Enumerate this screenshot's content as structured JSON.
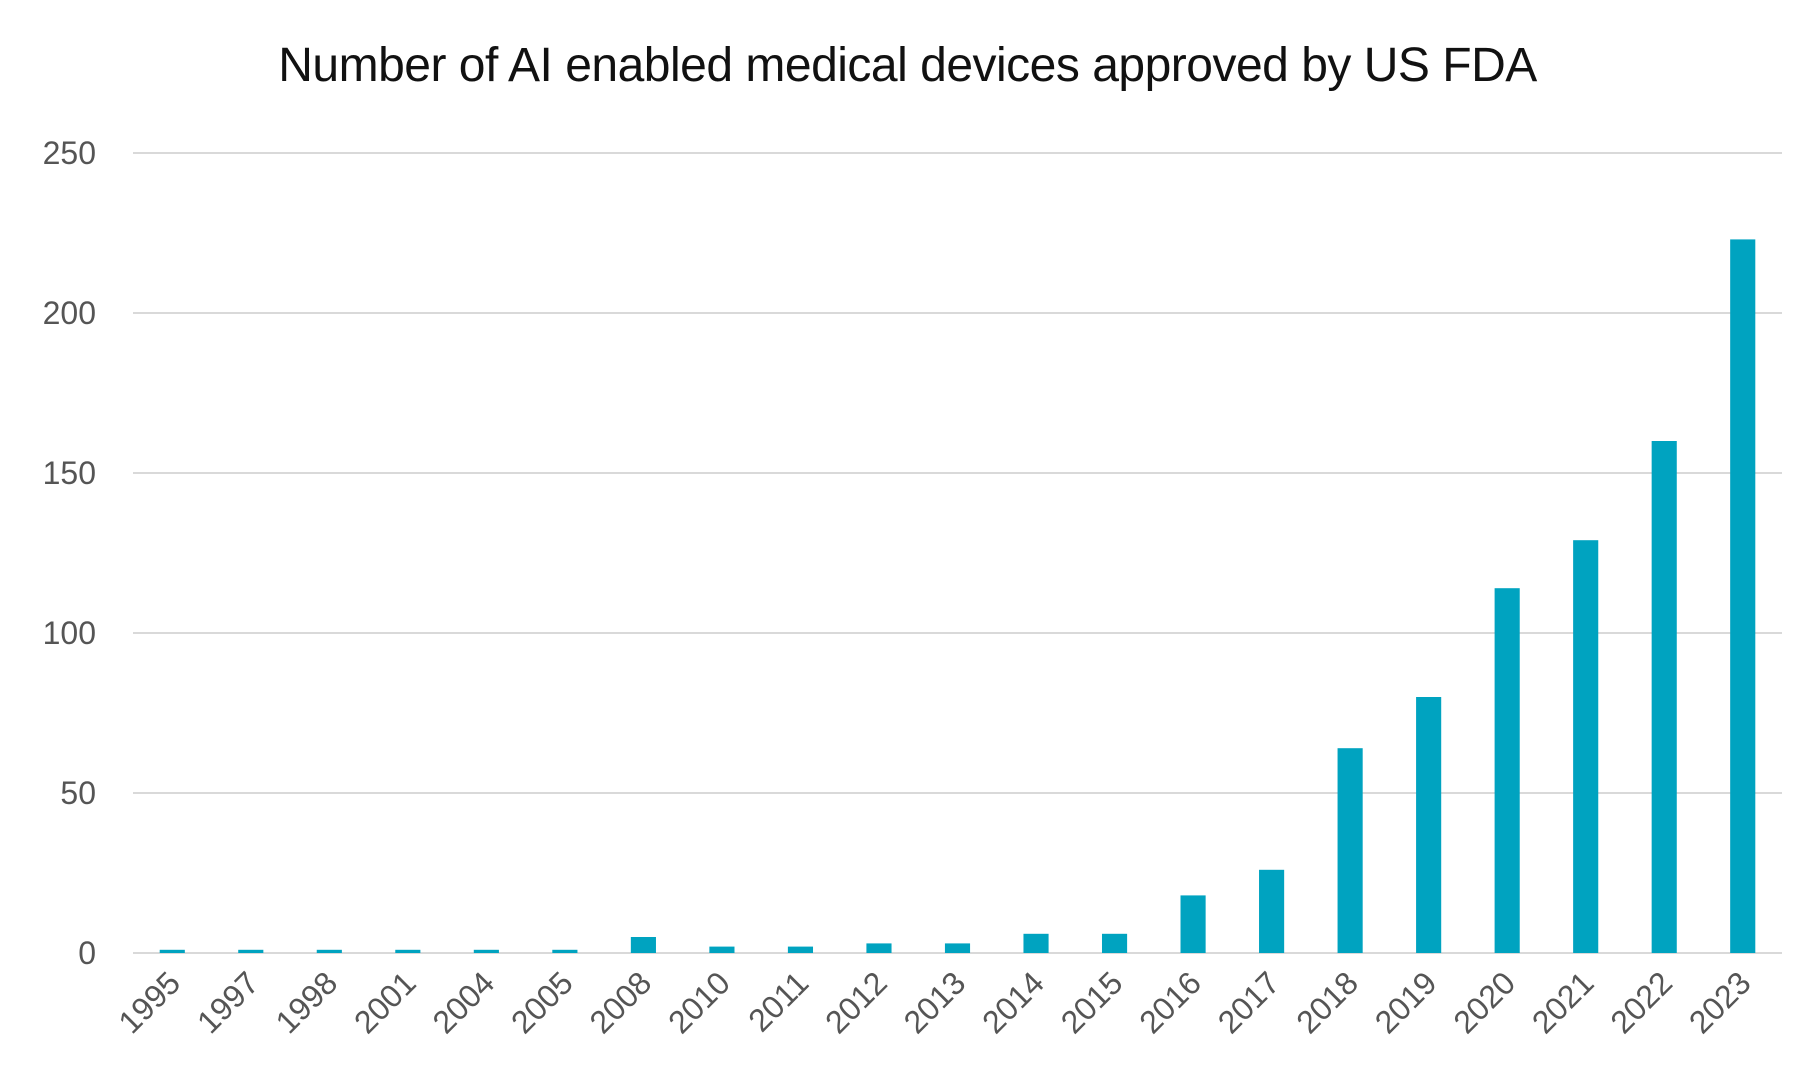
{
  "chart_data": {
    "type": "bar",
    "title": "Number of AI enabled medical devices approved by US FDA",
    "xlabel": "",
    "ylabel": "",
    "categories": [
      "1995",
      "1997",
      "1998",
      "2001",
      "2004",
      "2005",
      "2008",
      "2010",
      "2011",
      "2012",
      "2013",
      "2014",
      "2015",
      "2016",
      "2017",
      "2018",
      "2019",
      "2020",
      "2021",
      "2022",
      "2023"
    ],
    "values": [
      1,
      1,
      1,
      1,
      1,
      1,
      5,
      2,
      2,
      3,
      3,
      6,
      6,
      18,
      26,
      64,
      80,
      114,
      129,
      160,
      223
    ],
    "ylim": [
      0,
      250
    ],
    "yticks": [
      "0",
      "50",
      "100",
      "150",
      "200",
      "250"
    ],
    "grid": true,
    "legend": "none",
    "bar_color": "#00A3C0",
    "grid_color": "#D9D9D9"
  }
}
